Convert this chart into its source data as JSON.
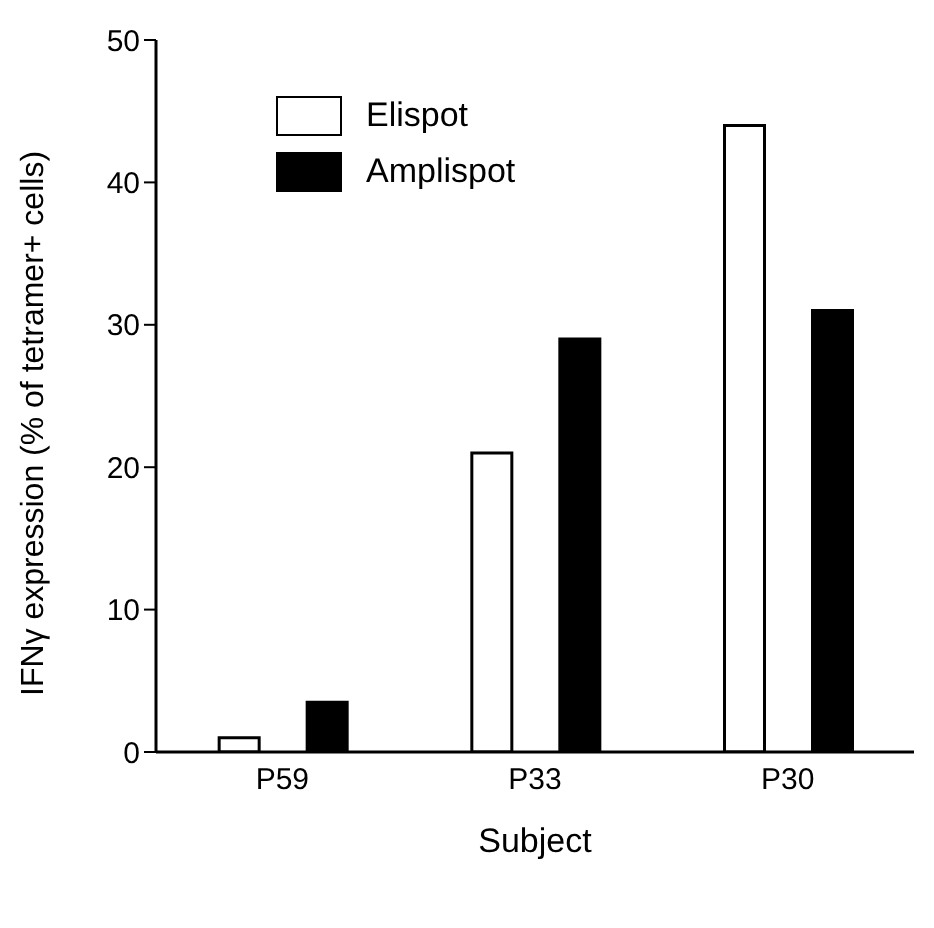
{
  "chart_data": {
    "type": "bar",
    "xlabel": "Subject",
    "ylabel": "IFNγ expression (% of tetramer+ cells)",
    "categories": [
      "P59",
      "P33",
      "P30"
    ],
    "series": [
      {
        "name": "Elispot",
        "color": "#ffffff",
        "values": [
          1,
          21,
          44
        ]
      },
      {
        "name": "Amplispot",
        "color": "#000000",
        "values": [
          3.5,
          29,
          31
        ]
      }
    ],
    "ylim": [
      0,
      50
    ],
    "yticks": [
      0,
      10,
      20,
      30,
      40,
      50
    ],
    "grid": false,
    "legend": "top left"
  }
}
